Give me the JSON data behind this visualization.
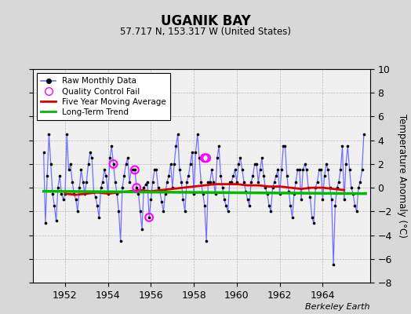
{
  "title": "UGANIK BAY",
  "subtitle": "57.717 N, 153.317 W (United States)",
  "ylabel": "Temperature Anomaly (°C)",
  "xlabel_note": "Berkeley Earth",
  "ylim": [
    -8,
    10
  ],
  "yticks": [
    -8,
    -6,
    -4,
    -2,
    0,
    2,
    4,
    6,
    8,
    10
  ],
  "xlim": [
    1950.5,
    1966.2
  ],
  "xticks": [
    1952,
    1954,
    1956,
    1958,
    1960,
    1962,
    1964
  ],
  "bg_color": "#d8d8d8",
  "plot_bg_color": "#f0f0f0",
  "line_color": "#7070ff",
  "dot_color": "#000000",
  "ma_color": "#dd0000",
  "trend_color": "#00bb00",
  "qc_color": "#ff00ff",
  "raw_data": {
    "times": [
      1951.0,
      1951.083,
      1951.167,
      1951.25,
      1951.333,
      1951.417,
      1951.5,
      1951.583,
      1951.667,
      1951.75,
      1951.833,
      1951.917,
      1952.0,
      1952.083,
      1952.167,
      1952.25,
      1952.333,
      1952.417,
      1952.5,
      1952.583,
      1952.667,
      1952.75,
      1952.833,
      1952.917,
      1953.0,
      1953.083,
      1953.167,
      1953.25,
      1953.333,
      1953.417,
      1953.5,
      1953.583,
      1953.667,
      1953.75,
      1953.833,
      1953.917,
      1954.0,
      1954.083,
      1954.167,
      1954.25,
      1954.333,
      1954.417,
      1954.5,
      1954.583,
      1954.667,
      1954.75,
      1954.833,
      1954.917,
      1955.0,
      1955.083,
      1955.167,
      1955.25,
      1955.333,
      1955.417,
      1955.5,
      1955.583,
      1955.667,
      1955.75,
      1955.833,
      1955.917,
      1956.0,
      1956.083,
      1956.167,
      1956.25,
      1956.333,
      1956.417,
      1956.5,
      1956.583,
      1956.667,
      1956.75,
      1956.833,
      1956.917,
      1957.0,
      1957.083,
      1957.167,
      1957.25,
      1957.333,
      1957.417,
      1957.5,
      1957.583,
      1957.667,
      1957.75,
      1957.833,
      1957.917,
      1958.0,
      1958.083,
      1958.167,
      1958.25,
      1958.333,
      1958.417,
      1958.5,
      1958.583,
      1958.667,
      1958.75,
      1958.833,
      1958.917,
      1959.0,
      1959.083,
      1959.167,
      1959.25,
      1959.333,
      1959.417,
      1959.5,
      1959.583,
      1959.667,
      1959.75,
      1959.833,
      1959.917,
      1960.0,
      1960.083,
      1960.167,
      1960.25,
      1960.333,
      1960.417,
      1960.5,
      1960.583,
      1960.667,
      1960.75,
      1960.833,
      1960.917,
      1961.0,
      1961.083,
      1961.167,
      1961.25,
      1961.333,
      1961.417,
      1961.5,
      1961.583,
      1961.667,
      1961.75,
      1961.833,
      1961.917,
      1962.0,
      1962.083,
      1962.167,
      1962.25,
      1962.333,
      1962.417,
      1962.5,
      1962.583,
      1962.667,
      1962.75,
      1962.833,
      1962.917,
      1963.0,
      1963.083,
      1963.167,
      1963.25,
      1963.333,
      1963.417,
      1963.5,
      1963.583,
      1963.667,
      1963.75,
      1963.833,
      1963.917,
      1964.0,
      1964.083,
      1964.167,
      1964.25,
      1964.333,
      1964.417,
      1964.5,
      1964.583,
      1964.667,
      1964.75,
      1964.833,
      1964.917,
      1965.0,
      1965.083,
      1965.167,
      1965.25,
      1965.333,
      1965.417,
      1965.5,
      1965.583,
      1965.667,
      1965.75,
      1965.833,
      1965.917
    ],
    "values": [
      3.0,
      -3.0,
      1.0,
      4.5,
      2.0,
      -0.5,
      -1.5,
      -2.8,
      0.0,
      1.0,
      -0.5,
      -1.0,
      -0.5,
      4.5,
      1.5,
      2.0,
      0.5,
      -0.5,
      -1.0,
      -2.0,
      0.0,
      1.5,
      0.5,
      -0.5,
      0.5,
      2.0,
      3.0,
      2.5,
      -0.3,
      -0.8,
      -1.5,
      -2.5,
      0.0,
      0.5,
      1.5,
      1.0,
      -0.5,
      2.5,
      3.5,
      2.0,
      0.5,
      -0.5,
      -2.0,
      -4.5,
      0.0,
      1.0,
      2.0,
      2.5,
      0.5,
      1.5,
      1.5,
      1.5,
      0.0,
      -0.5,
      -2.0,
      -3.5,
      0.0,
      0.3,
      0.5,
      -2.5,
      -1.0,
      0.5,
      1.5,
      1.5,
      0.0,
      -0.3,
      -1.2,
      -2.0,
      -0.5,
      0.5,
      1.0,
      2.0,
      0.0,
      2.0,
      3.5,
      4.5,
      1.5,
      0.5,
      -1.0,
      -2.0,
      0.5,
      1.0,
      2.0,
      3.0,
      -0.5,
      3.0,
      4.5,
      2.5,
      0.5,
      -0.5,
      -1.5,
      -4.5,
      0.5,
      0.5,
      1.5,
      0.5,
      -0.5,
      2.5,
      3.5,
      1.0,
      0.0,
      -1.0,
      -1.5,
      -2.0,
      0.5,
      0.5,
      1.0,
      1.5,
      0.5,
      2.0,
      2.5,
      1.5,
      0.5,
      -0.3,
      -1.0,
      -1.5,
      0.5,
      1.0,
      2.0,
      2.0,
      0.5,
      1.5,
      2.5,
      1.0,
      0.0,
      -0.5,
      -1.5,
      -2.0,
      0.0,
      0.5,
      1.0,
      1.5,
      -0.5,
      1.5,
      3.5,
      3.5,
      1.0,
      -0.3,
      -1.5,
      -2.5,
      -0.5,
      0.5,
      1.5,
      1.5,
      -1.0,
      1.5,
      2.0,
      1.5,
      0.0,
      -0.8,
      -2.5,
      -3.0,
      0.0,
      0.5,
      1.5,
      1.5,
      -1.0,
      1.0,
      2.0,
      1.5,
      0.0,
      -1.0,
      -6.5,
      -1.5,
      0.0,
      0.5,
      1.5,
      3.5,
      -1.0,
      2.0,
      3.5,
      1.5,
      0.0,
      -0.5,
      -1.5,
      -2.0,
      0.0,
      0.5,
      1.5,
      4.5
    ]
  },
  "qc_fail_times": [
    1954.25,
    1955.25,
    1955.333,
    1955.917,
    1958.5,
    1958.583
  ],
  "qc_fail_values": [
    2.0,
    1.5,
    0.0,
    -2.5,
    2.5,
    2.5
  ],
  "ma_times": [
    1952.0,
    1952.5,
    1953.0,
    1953.5,
    1954.0,
    1954.5,
    1955.0,
    1955.5,
    1956.0,
    1956.5,
    1957.0,
    1957.5,
    1958.0,
    1958.5,
    1959.0,
    1959.5,
    1960.0,
    1960.5,
    1961.0,
    1961.5,
    1962.0,
    1962.5,
    1963.0,
    1963.5,
    1964.0,
    1964.5,
    1965.0
  ],
  "ma_values": [
    -0.5,
    -0.6,
    -0.5,
    -0.4,
    -0.5,
    -0.4,
    -0.3,
    -0.2,
    -0.3,
    -0.2,
    -0.1,
    0.0,
    0.1,
    0.2,
    0.3,
    0.3,
    0.3,
    0.2,
    0.2,
    0.1,
    0.1,
    0.0,
    -0.1,
    0.0,
    0.0,
    -0.1,
    -0.2
  ],
  "trend_times": [
    1951.0,
    1966.0
  ],
  "trend_values": [
    -0.3,
    -0.5
  ]
}
